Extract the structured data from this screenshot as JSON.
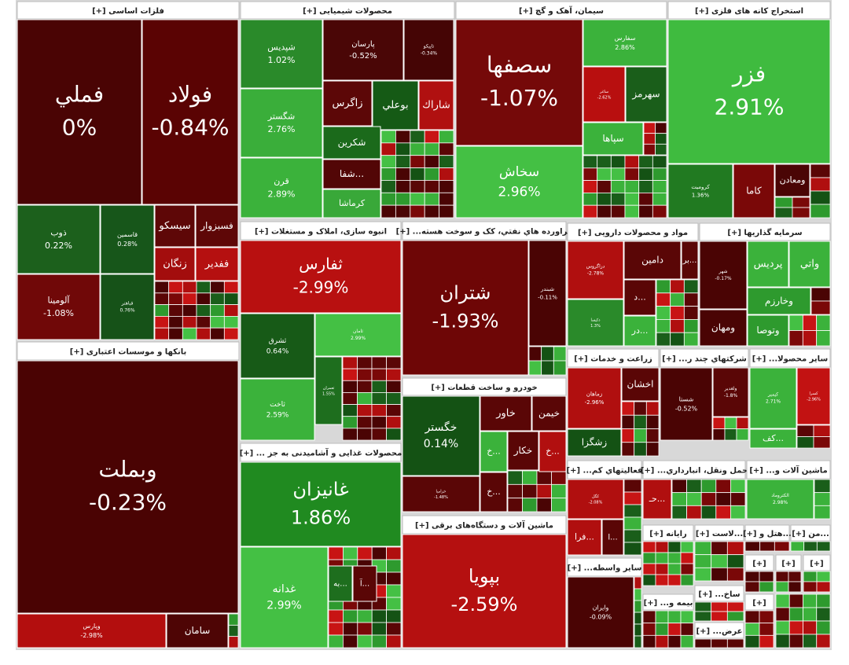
{
  "sectors": [
    {
      "title": "فلزات اساسی [+]",
      "tiles": [
        {
          "name": "فولاد",
          "change": "-0.84%",
          "color": "#5a0303"
        },
        {
          "name": "فملي",
          "change": "0%",
          "color": "#4a0404"
        },
        {
          "name": "ذوب",
          "change": "0.22%",
          "color": "#1c601c"
        },
        {
          "name": "قاسمین",
          "change": "0.28%",
          "color": "#17561a"
        },
        {
          "name": "سیسکو",
          "color": "#5e0707"
        },
        {
          "name": "فسبزوار",
          "color": "#5e0707"
        },
        {
          "name": "زنگان",
          "color": "#a30d0d"
        },
        {
          "name": "ففدیر",
          "color": "#b51010"
        },
        {
          "name": "آلومینا",
          "change": "-1.08%",
          "color": "#700808"
        },
        {
          "name": "فباهنر",
          "change": "0.76%",
          "color": "#165218"
        }
      ]
    },
    {
      "title": "بانکها و موسسات اعتباری [+]",
      "tiles": [
        {
          "name": "وبملت",
          "change": "-0.23%",
          "color": "#4a0303"
        },
        {
          "name": "وپارس",
          "change": "-2.98%",
          "color": "#b30e0e"
        },
        {
          "name": "سامان",
          "color": "#4e0505"
        }
      ]
    },
    {
      "title": "محصولات شیمیایی [+]",
      "tiles": [
        {
          "name": "شپدیس",
          "change": "1.02%",
          "color": "#2a8a2a"
        },
        {
          "name": "شگستر",
          "change": "2.76%",
          "color": "#3aae3a"
        },
        {
          "name": "قرن",
          "change": "2.89%",
          "color": "#3bb23b"
        },
        {
          "name": "پارسان",
          "change": "-0.52%",
          "color": "#4a0606"
        },
        {
          "name": "تاپیکو",
          "change": "-0.34%",
          "color": "#450505"
        },
        {
          "name": "زاگرس",
          "color": "#5c0707"
        },
        {
          "name": "بوعلي",
          "color": "#155a15"
        },
        {
          "name": "شاراك",
          "color": "#b01010"
        },
        {
          "name": "شکرین",
          "color": "#1b6a1b"
        },
        {
          "name": "شفا...",
          "color": "#520606"
        },
        {
          "name": "کرماشا",
          "color": "#39a839"
        }
      ]
    },
    {
      "title": "سیمان، آهک و گچ [+]",
      "tiles": [
        {
          "name": "سصفها",
          "change": "-1.07%",
          "color": "#750909"
        },
        {
          "name": "سخاش",
          "change": "2.96%",
          "color": "#44c044"
        },
        {
          "name": "سفارس",
          "change": "2.86%",
          "color": "#3bb23b"
        },
        {
          "name": "ساغر",
          "change": "-2.62%",
          "color": "#b80f0f"
        },
        {
          "name": "سهرمز",
          "color": "#1a5e1a"
        },
        {
          "name": "سپاها",
          "color": "#3bb23b"
        }
      ]
    },
    {
      "title": "استخراج کانه های فلزی [+]",
      "tiles": [
        {
          "name": "فزر",
          "change": "2.91%",
          "color": "#3fbb3f"
        },
        {
          "name": "کرومیت",
          "change": "1.36%",
          "color": "#217a21"
        },
        {
          "name": "کاما",
          "color": "#7a0808"
        },
        {
          "name": "ومعادن",
          "color": "#4a0505"
        }
      ]
    },
    {
      "title": "انبوه سازی، املاک و مستغلات [+]",
      "tiles": [
        {
          "name": "ثفارس",
          "change": "-2.99%",
          "color": "#b81010"
        },
        {
          "name": "ثشرق",
          "change": "0.64%",
          "color": "#175a17"
        },
        {
          "name": "ثاخت",
          "change": "2.59%",
          "color": "#3bb23b"
        },
        {
          "name": "ثامان",
          "change": "2.99%",
          "color": "#44c044"
        },
        {
          "name": "ثعمران",
          "change": "1.55%",
          "color": "#1e6e1e"
        }
      ]
    },
    {
      "title": "فراورده هاي نفتي، کک و سوخت هسته... [+]",
      "tiles": [
        {
          "name": "شتران",
          "change": "-1.93%",
          "color": "#6e0606"
        },
        {
          "name": "شبندر",
          "change": "-0.11%",
          "color": "#4a0404"
        }
      ]
    },
    {
      "title": "خودرو و ساخت قطعات [+]",
      "tiles": [
        {
          "name": "خگستر",
          "change": "0.14%",
          "color": "#145214"
        },
        {
          "name": "خاور",
          "color": "#5a0606"
        },
        {
          "name": "خیمن",
          "color": "#5a0606"
        },
        {
          "name": "خکار",
          "color": "#5a0606"
        },
        {
          "name": "خ...",
          "color": "#3bb23b"
        },
        {
          "name": "خ...",
          "color": "#b10f0f"
        },
        {
          "name": "خزامیا",
          "change": "-1.48%",
          "color": "#5a0606"
        },
        {
          "name": "خ...",
          "color": "#5a0606"
        }
      ]
    },
    {
      "title": "ماشین آلات و دستگاه‌های برقی [+]",
      "tiles": [
        {
          "name": "بپویا",
          "change": "-2.59%",
          "color": "#b51010"
        }
      ]
    },
    {
      "title": "محصولات غذایی و آشامیدنی به جز ... [+]",
      "tiles": [
        {
          "name": "غانیزان",
          "change": "1.86%",
          "color": "#208a20"
        },
        {
          "name": "غدانه",
          "change": "2.99%",
          "color": "#44c044"
        },
        {
          "name": "به...",
          "color": "#1e6e1e"
        },
        {
          "name": "آ...",
          "color": "#5a0606"
        }
      ]
    },
    {
      "title": "مواد و محصولات دارویی [+]",
      "tiles": [
        {
          "name": "دزاگروس",
          "change": "-2.78%",
          "color": "#b00f0f"
        },
        {
          "name": "دامین",
          "color": "#5a0606"
        },
        {
          "name": "بر...",
          "color": "#5a0606"
        },
        {
          "name": "دکپسا",
          "change": "1.3%",
          "color": "#2a8a2a"
        },
        {
          "name": "د...",
          "color": "#5a0606"
        },
        {
          "name": "در...",
          "color": "#3bb23b"
        }
      ]
    },
    {
      "title": "سرمایه گذاریها [+]",
      "tiles": [
        {
          "name": "شهر",
          "change": "-0.17%",
          "color": "#4a0404"
        },
        {
          "name": "پردیس",
          "color": "#3bb23b"
        },
        {
          "name": "واتي",
          "color": "#3bb23b"
        },
        {
          "name": "وخارزم",
          "color": "#2e9a2e"
        },
        {
          "name": "ومهان",
          "color": "#4a0404"
        },
        {
          "name": "وتوصا",
          "color": "#2e9a2e"
        }
      ]
    },
    {
      "title": "زراعت و خدمات [+]",
      "tiles": [
        {
          "name": "زماهان",
          "change": "-2.96%",
          "color": "#b00f0f"
        },
        {
          "name": "اخشان",
          "color": "#5a0606"
        },
        {
          "name": "زشگزا",
          "color": "#145214"
        }
      ]
    },
    {
      "title": "شرکتهاي چند ر... [+]",
      "tiles": [
        {
          "name": "شستا",
          "change": "-0.52%",
          "color": "#4a0404"
        },
        {
          "name": "ولغدیر",
          "change": "-1.8%",
          "color": "#5a0606"
        }
      ]
    },
    {
      "title": "سایر محصولا... [+]",
      "tiles": [
        {
          "name": "کیمیر",
          "change": "2.71%",
          "color": "#3bb23b"
        },
        {
          "name": "کسرا",
          "change": "-2.96%",
          "color": "#c21212"
        },
        {
          "name": "کف...",
          "color": "#3bb23b"
        }
      ]
    },
    {
      "title": "فعالیتهاي کم... [+]",
      "tiles": [
        {
          "name": "کگل",
          "change": "-2.08%",
          "color": "#b00f0f"
        },
        {
          "name": "فرا...",
          "color": "#b00f0f"
        },
        {
          "name": "ا...",
          "color": "#5a0606"
        }
      ]
    },
    {
      "title": "حمل ونقل، انبارداري... [+]",
      "tiles": [
        {
          "name": "حـ...",
          "color": "#b00f0f"
        }
      ]
    },
    {
      "title": "ماشین آلات و... [+]",
      "tiles": [
        {
          "name": "الکتروماد",
          "change": "2.98%",
          "color": "#3bb23b"
        }
      ]
    },
    {
      "title": "ساير واسطه... [+]",
      "tiles": [
        {
          "name": "وایران",
          "change": "-0.09%",
          "color": "#4a0404"
        }
      ]
    },
    {
      "title": "رایانه [+]",
      "tiles": []
    },
    {
      "title": "...لاست [+]",
      "tiles": []
    },
    {
      "title": "...هتل و [+]",
      "tiles": []
    },
    {
      "title": "...من [+]",
      "tiles": []
    },
    {
      "title": "بیمه و... [+]",
      "tiles": []
    },
    {
      "title": "ساخ... [+]",
      "tiles": []
    },
    {
      "title": "عرض... [+]",
      "tiles": []
    },
    {
      "title": "[+]",
      "tiles": []
    },
    {
      "title": "[+]",
      "tiles": []
    },
    {
      "title": "[+]",
      "tiles": []
    },
    {
      "title": "[+]",
      "tiles": []
    }
  ]
}
